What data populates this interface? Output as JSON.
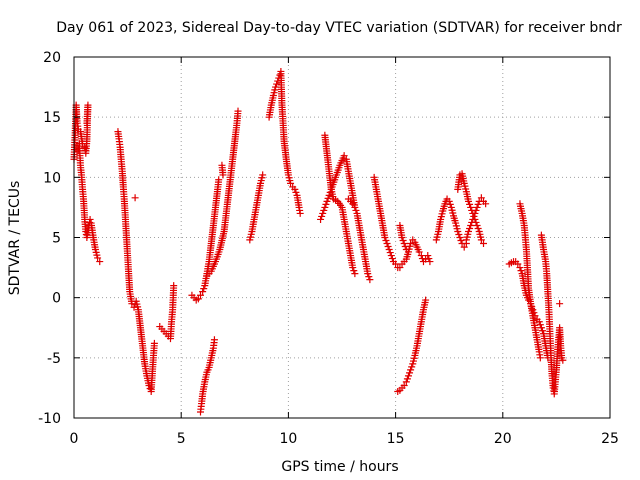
{
  "chart_data": {
    "type": "scatter",
    "title": "Day 061 of 2023, Sidereal Day-to-day VTEC variation (SDTVAR) for receiver bndr",
    "xlabel": "GPS time / hours",
    "ylabel": "SDTVAR / TECUs",
    "xlim": [
      0,
      25
    ],
    "ylim": [
      -10,
      20
    ],
    "xticks": [
      0,
      5,
      10,
      15,
      20,
      25
    ],
    "yticks": [
      -10,
      -5,
      0,
      5,
      10,
      15,
      20
    ],
    "xtick_labels": [
      "0",
      "5",
      "10",
      "15",
      "20",
      "25"
    ],
    "ytick_labels": [
      "-10",
      "-5",
      "0",
      "5",
      "10",
      "15",
      "20"
    ],
    "grid": true,
    "marker": "plus",
    "color": "#e00000",
    "series": [
      {
        "name": "s1",
        "points": [
          [
            0.0,
            11.5
          ],
          [
            0.05,
            13.5
          ],
          [
            0.1,
            16.0
          ],
          [
            0.15,
            14.5
          ],
          [
            0.2,
            14.0
          ],
          [
            0.3,
            13.8
          ],
          [
            0.4,
            12.8
          ],
          [
            0.5,
            12.5
          ],
          [
            0.55,
            12.0
          ],
          [
            0.6,
            13.0
          ],
          [
            0.65,
            16.0
          ],
          [
            0.6,
            14.5
          ]
        ]
      },
      {
        "name": "s2",
        "points": [
          [
            0.2,
            12.2
          ],
          [
            0.25,
            12.8
          ],
          [
            0.3,
            11.0
          ],
          [
            0.35,
            10.2
          ],
          [
            0.4,
            9.0
          ],
          [
            0.45,
            8.0
          ],
          [
            0.5,
            6.5
          ],
          [
            0.55,
            5.5
          ],
          [
            0.6,
            5.0
          ],
          [
            0.7,
            6.0
          ],
          [
            0.75,
            6.5
          ],
          [
            0.8,
            6.2
          ],
          [
            0.9,
            5.0
          ],
          [
            1.0,
            4.0
          ],
          [
            1.1,
            3.3
          ],
          [
            1.2,
            3.0
          ]
        ]
      },
      {
        "name": "s3",
        "points": [
          [
            2.05,
            13.8
          ],
          [
            2.1,
            13.2
          ],
          [
            2.15,
            12.5
          ],
          [
            2.2,
            11.5
          ],
          [
            2.25,
            10.5
          ],
          [
            2.3,
            9.2
          ],
          [
            2.35,
            8.0
          ],
          [
            2.4,
            6.5
          ],
          [
            2.45,
            5.0
          ],
          [
            2.5,
            3.5
          ],
          [
            2.55,
            2.0
          ],
          [
            2.6,
            0.5
          ],
          [
            2.7,
            -0.5
          ],
          [
            2.8,
            -0.8
          ],
          [
            2.9,
            -0.3
          ],
          [
            3.0,
            -1.0
          ],
          [
            3.1,
            -2.5
          ],
          [
            3.2,
            -4.0
          ],
          [
            3.3,
            -5.5
          ],
          [
            3.4,
            -6.5
          ],
          [
            3.5,
            -7.3
          ],
          [
            3.6,
            -7.8
          ],
          [
            3.7,
            -5.0
          ],
          [
            3.75,
            -3.8
          ],
          [
            2.85,
            8.3
          ]
        ]
      },
      {
        "name": "s4",
        "points": [
          [
            4.0,
            -2.4
          ],
          [
            4.1,
            -2.6
          ],
          [
            4.2,
            -2.8
          ],
          [
            4.3,
            -3.0
          ],
          [
            4.4,
            -3.2
          ],
          [
            4.5,
            -3.4
          ],
          [
            4.55,
            -2.0
          ],
          [
            4.6,
            -1.0
          ],
          [
            4.65,
            1.0
          ]
        ]
      },
      {
        "name": "s5",
        "points": [
          [
            5.5,
            0.2
          ],
          [
            5.6,
            0.0
          ],
          [
            5.7,
            -0.2
          ],
          [
            5.8,
            -0.1
          ],
          [
            5.9,
            0.2
          ],
          [
            6.0,
            0.5
          ],
          [
            6.1,
            1.0
          ],
          [
            6.2,
            2.0
          ],
          [
            6.3,
            3.0
          ],
          [
            6.4,
            4.5
          ],
          [
            6.5,
            6.0
          ],
          [
            6.6,
            7.5
          ],
          [
            6.7,
            9.0
          ],
          [
            6.75,
            9.8
          ]
        ]
      },
      {
        "name": "s6",
        "points": [
          [
            6.2,
            1.8
          ],
          [
            6.4,
            2.2
          ],
          [
            6.6,
            3.0
          ],
          [
            6.8,
            4.0
          ],
          [
            7.0,
            5.5
          ],
          [
            7.1,
            7.0
          ],
          [
            7.2,
            8.5
          ],
          [
            7.3,
            10.0
          ],
          [
            7.4,
            11.5
          ],
          [
            7.5,
            13.0
          ],
          [
            7.6,
            14.5
          ],
          [
            7.65,
            15.5
          ],
          [
            6.9,
            11.0
          ],
          [
            6.95,
            10.2
          ]
        ]
      },
      {
        "name": "s7",
        "points": [
          [
            5.9,
            -9.5
          ],
          [
            5.95,
            -8.8
          ],
          [
            6.0,
            -8.0
          ],
          [
            6.1,
            -7.0
          ],
          [
            6.2,
            -6.2
          ],
          [
            6.3,
            -5.8
          ],
          [
            6.4,
            -5.0
          ],
          [
            6.5,
            -4.2
          ],
          [
            6.55,
            -3.5
          ]
        ]
      },
      {
        "name": "s8",
        "points": [
          [
            8.2,
            4.8
          ],
          [
            8.3,
            5.5
          ],
          [
            8.4,
            6.5
          ],
          [
            8.5,
            7.5
          ],
          [
            8.6,
            8.5
          ],
          [
            8.7,
            9.5
          ],
          [
            8.8,
            10.2
          ]
        ]
      },
      {
        "name": "s9",
        "points": [
          [
            9.1,
            15.0
          ],
          [
            9.2,
            16.0
          ],
          [
            9.3,
            16.8
          ],
          [
            9.4,
            17.5
          ],
          [
            9.5,
            18.0
          ],
          [
            9.6,
            18.5
          ],
          [
            9.65,
            18.8
          ],
          [
            9.7,
            16.0
          ],
          [
            9.75,
            14.5
          ],
          [
            9.8,
            13.0
          ],
          [
            9.9,
            11.5
          ],
          [
            10.0,
            10.2
          ],
          [
            10.1,
            9.5
          ],
          [
            10.2,
            9.2
          ],
          [
            10.3,
            9.0
          ],
          [
            10.4,
            8.5
          ],
          [
            10.5,
            7.5
          ],
          [
            10.55,
            7.0
          ]
        ]
      },
      {
        "name": "s10",
        "points": [
          [
            11.5,
            6.5
          ],
          [
            11.6,
            7.0
          ],
          [
            11.7,
            7.5
          ],
          [
            11.8,
            8.0
          ],
          [
            11.9,
            8.5
          ],
          [
            12.0,
            9.0
          ],
          [
            12.2,
            10.0
          ],
          [
            12.4,
            11.0
          ],
          [
            12.6,
            11.8
          ],
          [
            12.7,
            11.5
          ],
          [
            12.8,
            10.5
          ],
          [
            12.9,
            9.5
          ],
          [
            13.0,
            8.5
          ],
          [
            13.1,
            7.5
          ],
          [
            13.2,
            7.0
          ],
          [
            13.3,
            6.0
          ],
          [
            13.4,
            5.0
          ],
          [
            13.5,
            4.0
          ],
          [
            13.6,
            3.0
          ],
          [
            13.7,
            2.0
          ],
          [
            13.8,
            1.5
          ]
        ]
      },
      {
        "name": "s11",
        "points": [
          [
            11.7,
            13.5
          ],
          [
            11.8,
            12.0
          ],
          [
            11.9,
            10.5
          ],
          [
            12.0,
            9.0
          ],
          [
            12.1,
            8.2
          ],
          [
            12.3,
            8.0
          ],
          [
            12.5,
            7.5
          ],
          [
            12.6,
            6.5
          ],
          [
            12.7,
            5.5
          ],
          [
            12.8,
            4.5
          ],
          [
            12.9,
            3.5
          ],
          [
            13.0,
            2.5
          ],
          [
            13.1,
            2.0
          ],
          [
            12.8,
            8.2
          ],
          [
            13.0,
            7.8
          ]
        ]
      },
      {
        "name": "s12",
        "points": [
          [
            14.0,
            10.0
          ],
          [
            14.1,
            9.0
          ],
          [
            14.2,
            8.0
          ],
          [
            14.3,
            7.0
          ],
          [
            14.4,
            6.0
          ],
          [
            14.5,
            5.0
          ],
          [
            14.6,
            4.5
          ],
          [
            14.7,
            4.0
          ],
          [
            14.8,
            3.5
          ],
          [
            14.9,
            3.0
          ],
          [
            15.0,
            2.8
          ],
          [
            15.1,
            2.5
          ],
          [
            15.2,
            2.5
          ],
          [
            15.3,
            2.8
          ],
          [
            15.4,
            3.0
          ],
          [
            15.5,
            3.2
          ],
          [
            15.6,
            3.8
          ]
        ]
      },
      {
        "name": "s13",
        "points": [
          [
            15.2,
            6.0
          ],
          [
            15.3,
            5.0
          ],
          [
            15.4,
            4.5
          ],
          [
            15.5,
            4.0
          ],
          [
            15.6,
            3.8
          ],
          [
            15.7,
            4.5
          ],
          [
            15.8,
            4.8
          ],
          [
            15.9,
            4.6
          ],
          [
            16.0,
            4.2
          ],
          [
            16.1,
            3.8
          ],
          [
            16.2,
            3.5
          ],
          [
            16.3,
            3.0
          ],
          [
            16.4,
            3.2
          ],
          [
            16.5,
            3.5
          ],
          [
            16.6,
            3.0
          ]
        ]
      },
      {
        "name": "s14",
        "points": [
          [
            15.1,
            -7.8
          ],
          [
            15.2,
            -7.7
          ],
          [
            15.3,
            -7.5
          ],
          [
            15.4,
            -7.3
          ],
          [
            15.5,
            -7.0
          ],
          [
            15.6,
            -6.5
          ],
          [
            15.7,
            -6.0
          ],
          [
            15.8,
            -5.5
          ],
          [
            15.9,
            -4.8
          ],
          [
            16.0,
            -4.0
          ],
          [
            16.1,
            -3.0
          ],
          [
            16.2,
            -2.0
          ],
          [
            16.3,
            -1.0
          ],
          [
            16.4,
            -0.2
          ]
        ]
      },
      {
        "name": "s15",
        "points": [
          [
            16.9,
            4.8
          ],
          [
            17.0,
            5.5
          ],
          [
            17.1,
            6.5
          ],
          [
            17.2,
            7.2
          ],
          [
            17.3,
            7.8
          ],
          [
            17.4,
            8.2
          ],
          [
            17.5,
            8.0
          ],
          [
            17.6,
            7.5
          ],
          [
            17.7,
            6.8
          ],
          [
            17.8,
            6.2
          ],
          [
            17.9,
            5.5
          ],
          [
            18.0,
            5.0
          ],
          [
            18.1,
            4.5
          ],
          [
            18.2,
            4.2
          ],
          [
            18.3,
            4.5
          ]
        ]
      },
      {
        "name": "s16",
        "points": [
          [
            17.9,
            9.0
          ],
          [
            18.0,
            10.2
          ],
          [
            18.1,
            10.3
          ],
          [
            18.2,
            9.5
          ],
          [
            18.3,
            8.8
          ],
          [
            18.4,
            8.0
          ],
          [
            18.5,
            7.5
          ],
          [
            18.6,
            7.0
          ],
          [
            18.7,
            6.5
          ],
          [
            18.8,
            6.0
          ],
          [
            18.9,
            5.5
          ],
          [
            19.0,
            4.8
          ],
          [
            19.1,
            4.5
          ]
        ]
      },
      {
        "name": "s17",
        "points": [
          [
            18.3,
            4.8
          ],
          [
            18.4,
            5.5
          ],
          [
            18.5,
            6.0
          ],
          [
            18.6,
            6.5
          ],
          [
            18.7,
            7.0
          ],
          [
            18.8,
            7.5
          ],
          [
            18.9,
            8.0
          ],
          [
            19.0,
            8.3
          ],
          [
            19.1,
            8.0
          ],
          [
            19.2,
            7.8
          ]
        ]
      },
      {
        "name": "s18",
        "points": [
          [
            20.3,
            2.8
          ],
          [
            20.4,
            2.9
          ],
          [
            20.5,
            3.0
          ],
          [
            20.6,
            3.0
          ],
          [
            20.7,
            2.8
          ],
          [
            20.8,
            2.5
          ],
          [
            20.9,
            2.0
          ],
          [
            21.0,
            1.0
          ],
          [
            21.1,
            0.2
          ],
          [
            21.2,
            -0.2
          ],
          [
            21.3,
            -0.5
          ],
          [
            21.4,
            -1.0
          ],
          [
            21.5,
            -1.5
          ],
          [
            21.6,
            -1.8
          ],
          [
            21.7,
            -2.0
          ],
          [
            21.8,
            -2.5
          ],
          [
            21.9,
            -3.0
          ],
          [
            22.0,
            -4.0
          ],
          [
            22.1,
            -5.0
          ]
        ]
      },
      {
        "name": "s19",
        "points": [
          [
            20.8,
            7.8
          ],
          [
            20.9,
            7.0
          ],
          [
            21.0,
            6.0
          ],
          [
            21.05,
            5.0
          ],
          [
            21.1,
            4.0
          ],
          [
            21.15,
            2.5
          ],
          [
            21.2,
            0.8
          ],
          [
            21.3,
            -0.5
          ],
          [
            21.4,
            -1.5
          ],
          [
            21.5,
            -2.5
          ],
          [
            21.6,
            -3.5
          ],
          [
            21.7,
            -4.5
          ],
          [
            21.75,
            -5.0
          ]
        ]
      },
      {
        "name": "s20",
        "points": [
          [
            21.8,
            5.2
          ],
          [
            21.9,
            4.0
          ],
          [
            22.0,
            3.0
          ],
          [
            22.05,
            2.0
          ],
          [
            22.1,
            0.5
          ],
          [
            22.15,
            -1.0
          ],
          [
            22.2,
            -3.0
          ],
          [
            22.25,
            -5.0
          ],
          [
            22.3,
            -6.5
          ],
          [
            22.35,
            -7.5
          ],
          [
            22.4,
            -8.0
          ],
          [
            22.45,
            -7.0
          ],
          [
            22.5,
            -6.0
          ],
          [
            22.55,
            -4.5
          ],
          [
            22.6,
            -3.5
          ],
          [
            22.65,
            -2.5
          ],
          [
            22.7,
            -4.0
          ],
          [
            22.75,
            -5.0
          ],
          [
            22.8,
            -5.2
          ],
          [
            22.65,
            -0.5
          ]
        ]
      }
    ]
  }
}
